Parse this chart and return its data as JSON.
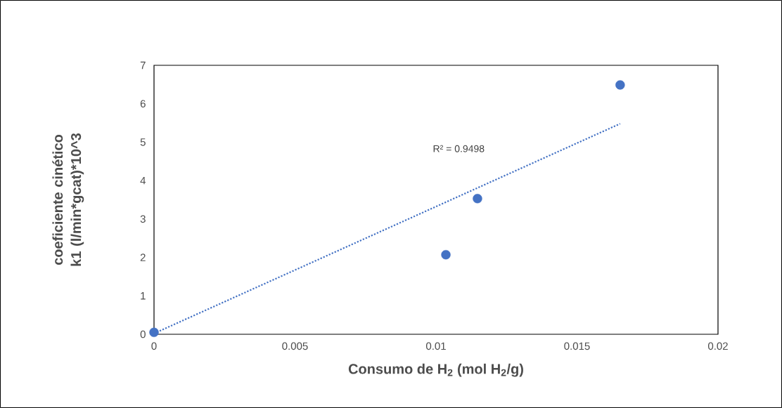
{
  "chart_data": {
    "type": "scatter",
    "xlabel": "Consumo de H$_{2}$ (mol H$_{2}$/g)",
    "ylabel": "coeficiente cinético k1 (l/min*gcat)*10^3",
    "annotations": [
      "R² = 0.9498"
    ],
    "series": [
      {
        "color": "#4472c4",
        "marker": "circle",
        "x": [
          0,
          0.01035,
          0.01147,
          0.01653
        ],
        "values": [
          0.05,
          2.07,
          3.53,
          6.49
        ]
      },
      {
        "type": "line",
        "color": "#4472c4",
        "line_style": "dotted",
        "marker": "none",
        "x": [
          0,
          0.01653
        ],
        "values": [
          0.02,
          5.48
        ]
      }
    ],
    "xlim": [
      0,
      0.02
    ],
    "ylim": [
      0,
      7
    ],
    "xticks": [
      0,
      0.005,
      0.01,
      0.015,
      0.02
    ],
    "yticks": [
      0,
      1,
      2,
      3,
      4,
      5,
      6,
      7
    ]
  }
}
